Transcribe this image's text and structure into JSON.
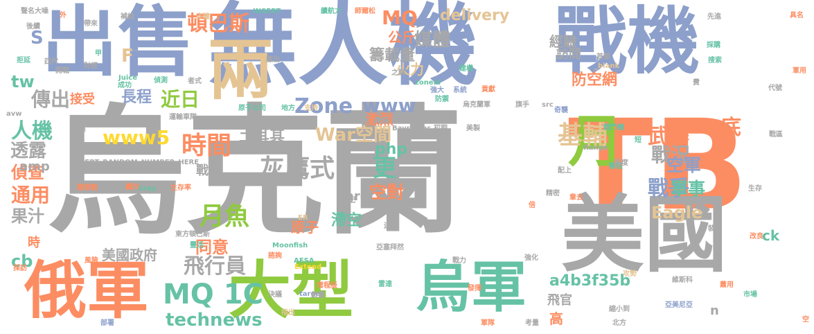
{
  "palette": {
    "gray": "#a8a8a8",
    "blue": "#8da0cb",
    "orange": "#fc8d62",
    "green": "#8fca3f",
    "teal": "#66c2a5",
    "tan": "#e5c494",
    "pink": "#e78ac3",
    "yellow": "#ffd92f"
  },
  "words": [
    {
      "text": "烏克蘭",
      "color": "gray"
    },
    {
      "text": "TB",
      "color": "orange"
    },
    {
      "text": "無人機",
      "color": "blue"
    },
    {
      "text": "出售",
      "color": "blue"
    },
    {
      "text": "戰機",
      "color": "blue"
    },
    {
      "text": "美國",
      "color": "gray"
    },
    {
      "text": "俄軍",
      "color": "orange"
    },
    {
      "text": "大型",
      "color": "green"
    },
    {
      "text": "烏軍",
      "color": "teal"
    },
    {
      "text": "兩",
      "color": "tan"
    },
    {
      "text": "MQ 1C",
      "color": "teal"
    },
    {
      "text": "灰鷹式",
      "color": "gray"
    },
    {
      "text": "時間",
      "color": "orange"
    },
    {
      "text": "月",
      "color": "green"
    },
    {
      "text": "基輔",
      "color": "tan"
    },
    {
      "text": "武器",
      "color": "orange"
    },
    {
      "text": "戰況",
      "color": "gray"
    },
    {
      "text": "戰爭",
      "color": "blue"
    },
    {
      "text": "月魚",
      "color": "green"
    },
    {
      "text": "飛行員",
      "color": "gray"
    },
    {
      "text": "頓巴斯",
      "color": "orange"
    },
    {
      "text": "www5",
      "color": "yellow"
    },
    {
      "text": "Zone",
      "color": "blue"
    },
    {
      "text": "www",
      "color": "blue"
    },
    {
      "text": "近日",
      "color": "green"
    },
    {
      "text": "傳出",
      "color": "gray"
    },
    {
      "text": "人機",
      "color": "teal"
    },
    {
      "text": "technews",
      "color": "teal"
    },
    {
      "text": "delivery",
      "color": "tan"
    },
    {
      "text": "MQ",
      "color": "orange"
    },
    {
      "text": "媒體",
      "color": "gray"
    },
    {
      "text": "War空間",
      "color": "tan"
    },
    {
      "text": "土耳其",
      "color": "gray"
    },
    {
      "text": "空軍",
      "color": "blue"
    },
    {
      "text": "軍事",
      "color": "teal"
    },
    {
      "text": "底",
      "color": "orange"
    },
    {
      "text": "更",
      "color": "teal"
    },
    {
      "text": "空對",
      "color": "orange"
    },
    {
      "text": "通用",
      "color": "orange"
    },
    {
      "text": "果汁",
      "color": "gray"
    },
    {
      "text": "透露",
      "color": "gray"
    },
    {
      "text": "偵查",
      "color": "orange"
    },
    {
      "text": "amp",
      "color": "gray"
    },
    {
      "text": "長程",
      "color": "blue"
    },
    {
      "text": "防空網",
      "color": "orange"
    },
    {
      "text": "經驗",
      "color": "gray"
    },
    {
      "text": "訪問",
      "color": "gray"
    },
    {
      "text": "籌載量",
      "color": "gray"
    },
    {
      "text": "公斤",
      "color": "orange"
    },
    {
      "text": "火力",
      "color": "tan"
    },
    {
      "text": "Eagle",
      "color": "tan"
    },
    {
      "text": "滯空",
      "color": "teal"
    },
    {
      "text": "小時",
      "color": "gray"
    },
    {
      "text": "同意",
      "color": "orange"
    },
    {
      "text": "戰線",
      "color": "gray"
    },
    {
      "text": "美國政府",
      "color": "gray"
    },
    {
      "text": "激烈",
      "color": "orange"
    },
    {
      "text": "php",
      "color": "teal"
    },
    {
      "text": "a4b3f35b",
      "color": "teal"
    },
    {
      "text": "cb",
      "color": "teal"
    },
    {
      "text": "tw",
      "color": "teal"
    },
    {
      "text": "S",
      "color": "blue"
    },
    {
      "text": "F",
      "color": "tan"
    },
    {
      "text": "接受",
      "color": "orange"
    },
    {
      "text": "飛官",
      "color": "gray"
    },
    {
      "text": "高",
      "color": "orange"
    },
    {
      "text": "n",
      "color": "gray"
    },
    {
      "text": "原子",
      "color": "orange"
    },
    {
      "text": "href",
      "color": "gray"
    },
    {
      "text": "時",
      "color": "orange"
    },
    {
      "text": "ck",
      "color": "teal"
    },
    {
      "text": "INSERT_RANDOM_NUMBER_HERE",
      "color": "gray"
    },
    {
      "text": "Bayraktar",
      "color": "gray"
    },
    {
      "text": "Moonfish",
      "color": "teal"
    },
    {
      "text": "AESA",
      "color": "teal"
    },
    {
      "text": "Extend",
      "color": "yellow"
    },
    {
      "text": "target",
      "color": "blue"
    },
    {
      "text": "Juice",
      "color": "teal"
    },
    {
      "text": "zoneid",
      "color": "teal"
    },
    {
      "text": "Range",
      "color": "gray"
    },
    {
      "text": "Grey",
      "color": "teal"
    },
    {
      "text": "INSERT",
      "color": "teal"
    },
    {
      "text": "img",
      "color": "blue"
    },
    {
      "text": "_blank",
      "color": "tan"
    },
    {
      "text": "src",
      "color": "gray"
    },
    {
      "text": "avw",
      "color": "gray"
    },
    {
      "text": "ER",
      "color": "tan"
    },
    {
      "text": "聲名大噪",
      "color": "gray"
    },
    {
      "text": "外",
      "color": "orange"
    },
    {
      "text": "帶來",
      "color": "gray"
    },
    {
      "text": "補給",
      "color": "gray"
    },
    {
      "text": "占據",
      "color": "tan"
    },
    {
      "text": "續航力",
      "color": "teal"
    },
    {
      "text": "師爾松",
      "color": "orange"
    },
    {
      "text": "先進",
      "color": "gray"
    },
    {
      "text": "具名",
      "color": "orange"
    },
    {
      "text": "後續",
      "color": "gray"
    },
    {
      "text": "四代",
      "color": "gray"
    },
    {
      "text": "甲",
      "color": "teal"
    },
    {
      "text": "開戰",
      "color": "gray"
    },
    {
      "text": "財經",
      "color": "gray"
    },
    {
      "text": "成功",
      "color": "teal"
    },
    {
      "text": "偵測",
      "color": "teal"
    },
    {
      "text": "者式",
      "color": "gray"
    },
    {
      "text": "撤出",
      "color": "gray"
    },
    {
      "text": "建構",
      "color": "teal"
    },
    {
      "text": "首都",
      "color": "gray"
    },
    {
      "text": "之餘",
      "color": "gray"
    },
    {
      "text": "費",
      "color": "gray"
    },
    {
      "text": "拒延",
      "color": "teal"
    },
    {
      "text": "原子公司",
      "color": "teal"
    },
    {
      "text": "地方",
      "color": "teal"
    },
    {
      "text": "支持",
      "color": "tan"
    },
    {
      "text": "運輸車隊",
      "color": "gray"
    },
    {
      "text": "南方",
      "color": "gray"
    },
    {
      "text": "初期",
      "color": "gray"
    },
    {
      "text": "美製",
      "color": "gray"
    },
    {
      "text": "強大",
      "color": "blue"
    },
    {
      "text": "系統",
      "color": "blue"
    },
    {
      "text": "貢獻",
      "color": "orange"
    },
    {
      "text": "防禦",
      "color": "teal"
    },
    {
      "text": "烏克蘭軍",
      "color": "gray"
    },
    {
      "text": "旗手",
      "color": "gray"
    },
    {
      "text": "奇襲",
      "color": "blue"
    },
    {
      "text": "戰鬥機",
      "color": "teal"
    },
    {
      "text": "短",
      "color": "teal"
    },
    {
      "text": "擊毀",
      "color": "teal"
    },
    {
      "text": "再度",
      "color": "gray"
    },
    {
      "text": "配上",
      "color": "gray"
    },
    {
      "text": "生存",
      "color": "gray"
    },
    {
      "text": "攻擊",
      "color": "gray"
    },
    {
      "text": "闖哦戰",
      "color": "orange"
    },
    {
      "text": "轟炸",
      "color": "orange"
    },
    {
      "text": "生存率",
      "color": "orange"
    },
    {
      "text": "搭配",
      "color": "gray"
    },
    {
      "text": "迫使",
      "color": "gray"
    },
    {
      "text": "精密",
      "color": "gray"
    },
    {
      "text": "章去",
      "color": "orange"
    },
    {
      "text": "倍",
      "color": "orange"
    },
    {
      "text": "東方頓巴斯",
      "color": "gray"
    },
    {
      "text": "豐活",
      "color": "teal"
    },
    {
      "text": "亞塞拜然",
      "color": "gray"
    },
    {
      "text": "諮詢",
      "color": "orange"
    },
    {
      "text": "戰力",
      "color": "gray"
    },
    {
      "text": "強化",
      "color": "gray"
    },
    {
      "text": "攻勢",
      "color": "tan"
    },
    {
      "text": "市場",
      "color": "teal"
    },
    {
      "text": "改良",
      "color": "orange"
    },
    {
      "text": "裝甲",
      "color": "gray"
    },
    {
      "text": "雷達",
      "color": "teal"
    },
    {
      "text": "發揮",
      "color": "orange"
    },
    {
      "text": "增程版",
      "color": "orange"
    },
    {
      "text": "決議",
      "color": "gray"
    },
    {
      "text": "部署",
      "color": "blue"
    },
    {
      "text": "指出",
      "color": "tan"
    },
    {
      "text": "考量",
      "color": "gray"
    },
    {
      "text": "北方",
      "color": "gray"
    },
    {
      "text": "縮小到",
      "color": "gray"
    },
    {
      "text": "亞美尼亞",
      "color": "blue"
    },
    {
      "text": "維斯科",
      "color": "gray"
    },
    {
      "text": "蕭用",
      "color": "orange"
    },
    {
      "text": "空",
      "color": "orange"
    },
    {
      "text": "軍隊",
      "color": "orange"
    },
    {
      "text": "風險",
      "color": "orange"
    },
    {
      "text": "採訪",
      "color": "orange"
    },
    {
      "text": "軍用",
      "color": "orange"
    },
    {
      "text": "代號",
      "color": "gray"
    },
    {
      "text": "戰區",
      "color": "gray"
    },
    {
      "text": "採購",
      "color": "teal"
    },
    {
      "text": "搜索",
      "color": "teal"
    },
    {
      "text": "數量",
      "color": "gray"
    }
  ]
}
